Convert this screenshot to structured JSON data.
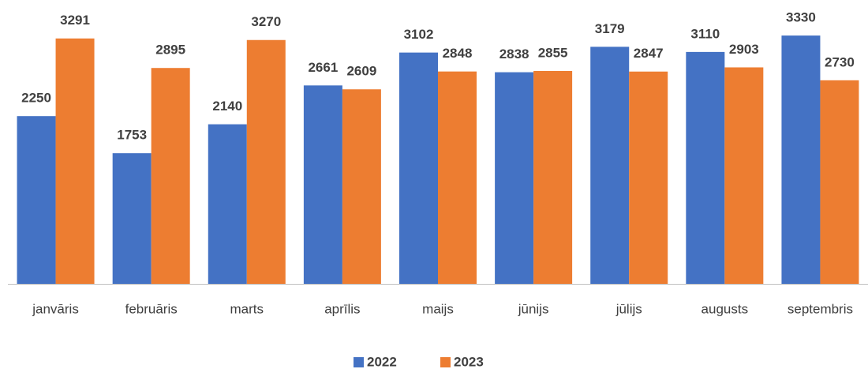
{
  "chart_data": {
    "type": "bar",
    "categories": [
      "janvāris",
      "februāris",
      "marts",
      "aprīlis",
      "maijs",
      "jūnijs",
      "jūlijs",
      "augusts",
      "septembris"
    ],
    "series": [
      {
        "name": "2022",
        "color": "#4472c4",
        "values": [
          2250,
          1753,
          2140,
          2661,
          3102,
          2838,
          3179,
          3110,
          3330
        ]
      },
      {
        "name": "2023",
        "color": "#ed7d31",
        "values": [
          3291,
          2895,
          3270,
          2609,
          2848,
          2855,
          2847,
          2903,
          2730
        ]
      }
    ],
    "ylim": [
      0,
      3500
    ],
    "legend": "bottom"
  }
}
